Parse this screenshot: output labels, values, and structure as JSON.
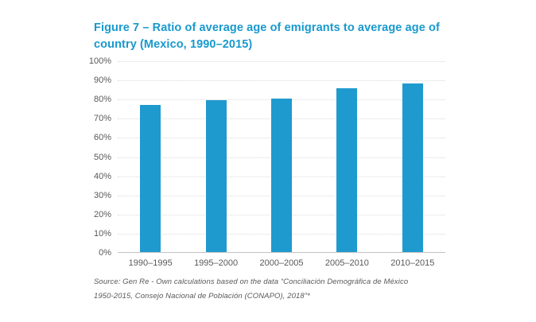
{
  "figure": {
    "title": "Figure 7 – Ratio of average age of emigrants to average age of country (Mexico, 1990–2015)",
    "source_line1": "Source: Gen Re - Own calculations based on the data “Conciliación Demográfica de México",
    "source_line2": "1950-2015, Consejo Nacional de Población (CONAPO), 2018”*"
  },
  "colors": {
    "title_text": "#1899ce",
    "bar_fill": "#1e9acf",
    "axis_label_text": "#595959",
    "gridline": "#d9d9d9",
    "baseline": "#c3c3c3",
    "source_text": "#595959"
  },
  "chart_data": {
    "type": "bar",
    "title": "Figure 7 – Ratio of average age of emigrants to average age of country (Mexico, 1990–2015)",
    "categories": [
      "1990–1995",
      "1995–2000",
      "2000–2005",
      "2005–2010",
      "2010–2015"
    ],
    "values": [
      77,
      79.5,
      80.5,
      85.8,
      88.3
    ],
    "xlabel": "",
    "ylabel": "",
    "ylim": [
      0,
      100
    ],
    "ytick_step": 10,
    "ytick_suffix": "%",
    "ytick_labels": [
      "0%",
      "10%",
      "20%",
      "30%",
      "40%",
      "50%",
      "60%",
      "70%",
      "80%",
      "90%",
      "100%"
    ],
    "grid": "horizontal-dotted",
    "legend": "none"
  }
}
